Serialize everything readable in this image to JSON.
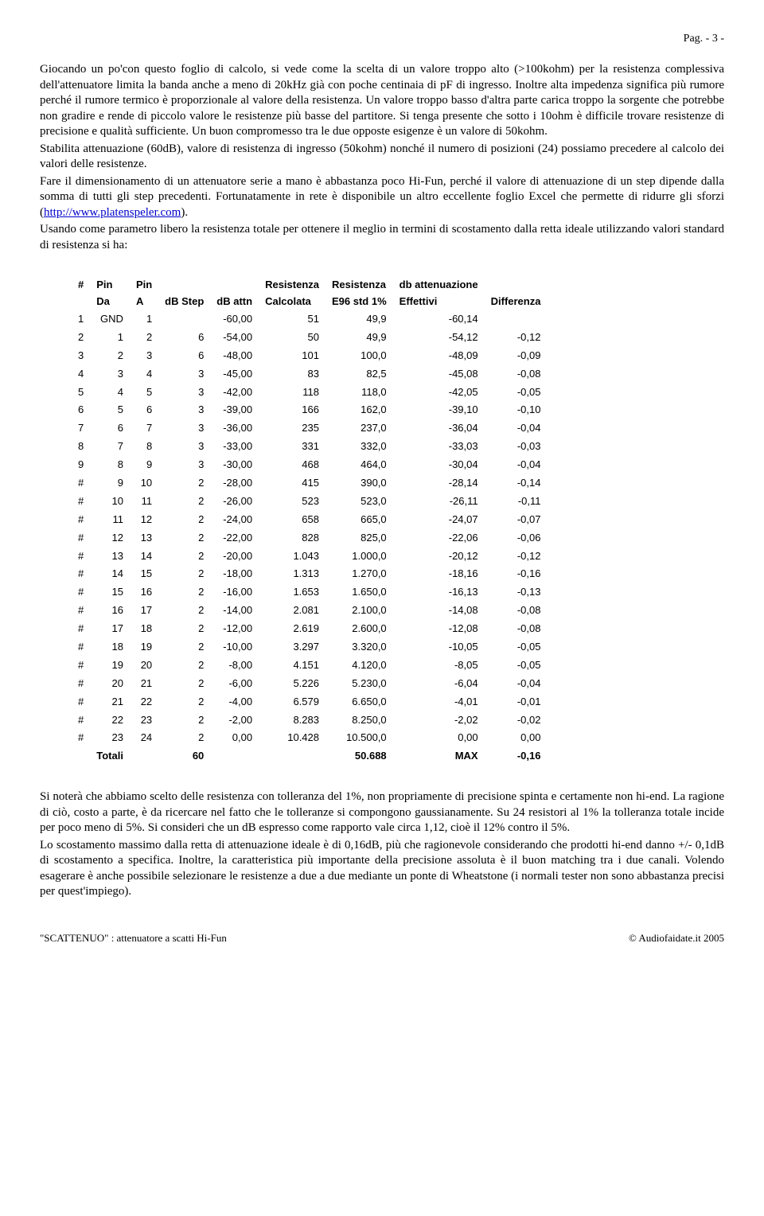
{
  "pageHeader": "Pag. - 3 -",
  "para1": "Giocando un po'con questo foglio di calcolo, si vede come la scelta di un valore troppo alto (>100kohm) per la resistenza complessiva dell'attenuatore limita la banda anche a meno di 20kHz già con poche centinaia di pF di ingresso. Inoltre alta impedenza significa più rumore perché il rumore termico è proporzionale al valore della resistenza. Un valore troppo basso d'altra parte carica troppo la sorgente che potrebbe non gradire e rende di piccolo valore le resistenze più basse del partitore. Si tenga presente che sotto i 10ohm è difficile trovare resistenze di precisione e qualità sufficiente. Un buon compromesso tra le due opposte esigenze è un valore di 50kohm.",
  "para2": "Stabilita attenuazione (60dB), valore di resistenza di ingresso (50kohm) nonché il numero di posizioni (24) possiamo precedere al calcolo dei valori delle resistenze.",
  "para3a": "Fare il dimensionamento di un attenuatore serie a mano è abbastanza poco Hi-Fun, perché il valore di attenuazione di un step dipende dalla somma di tutti gli step precedenti. Fortunatamente in rete è disponibile un altro eccellente foglio Excel che permette di ridurre gli sforzi (",
  "linkText": "http://www.platenspeler.com",
  "para3b": ").",
  "para4": "Usando come parametro libero la resistenza totale per ottenere il meglio in termini di scostamento dalla retta ideale utilizzando valori standard di resistenza si ha:",
  "headers": {
    "h1": "#",
    "h2": "Pin",
    "h3": "Pin",
    "h4": "",
    "h5": "",
    "h6": "Resistenza",
    "h7": "Resistenza",
    "h8": "db attenuazione",
    "h9": "",
    "s2": "Da",
    "s3": "A",
    "s4": "dB Step",
    "s5": "dB attn",
    "s6": "Calcolata",
    "s7": "E96 std 1%",
    "s8": "Effettivi",
    "s9": "Differenza"
  },
  "rows": [
    [
      "1",
      "GND",
      "1",
      "",
      "-60,00",
      "51",
      "49,9",
      "-60,14",
      ""
    ],
    [
      "2",
      "1",
      "2",
      "6",
      "-54,00",
      "50",
      "49,9",
      "-54,12",
      "-0,12"
    ],
    [
      "3",
      "2",
      "3",
      "6",
      "-48,00",
      "101",
      "100,0",
      "-48,09",
      "-0,09"
    ],
    [
      "4",
      "3",
      "4",
      "3",
      "-45,00",
      "83",
      "82,5",
      "-45,08",
      "-0,08"
    ],
    [
      "5",
      "4",
      "5",
      "3",
      "-42,00",
      "118",
      "118,0",
      "-42,05",
      "-0,05"
    ],
    [
      "6",
      "5",
      "6",
      "3",
      "-39,00",
      "166",
      "162,0",
      "-39,10",
      "-0,10"
    ],
    [
      "7",
      "6",
      "7",
      "3",
      "-36,00",
      "235",
      "237,0",
      "-36,04",
      "-0,04"
    ],
    [
      "8",
      "7",
      "8",
      "3",
      "-33,00",
      "331",
      "332,0",
      "-33,03",
      "-0,03"
    ],
    [
      "9",
      "8",
      "9",
      "3",
      "-30,00",
      "468",
      "464,0",
      "-30,04",
      "-0,04"
    ],
    [
      "#",
      "9",
      "10",
      "2",
      "-28,00",
      "415",
      "390,0",
      "-28,14",
      "-0,14"
    ],
    [
      "#",
      "10",
      "11",
      "2",
      "-26,00",
      "523",
      "523,0",
      "-26,11",
      "-0,11"
    ],
    [
      "#",
      "11",
      "12",
      "2",
      "-24,00",
      "658",
      "665,0",
      "-24,07",
      "-0,07"
    ],
    [
      "#",
      "12",
      "13",
      "2",
      "-22,00",
      "828",
      "825,0",
      "-22,06",
      "-0,06"
    ],
    [
      "#",
      "13",
      "14",
      "2",
      "-20,00",
      "1.043",
      "1.000,0",
      "-20,12",
      "-0,12"
    ],
    [
      "#",
      "14",
      "15",
      "2",
      "-18,00",
      "1.313",
      "1.270,0",
      "-18,16",
      "-0,16"
    ],
    [
      "#",
      "15",
      "16",
      "2",
      "-16,00",
      "1.653",
      "1.650,0",
      "-16,13",
      "-0,13"
    ],
    [
      "#",
      "16",
      "17",
      "2",
      "-14,00",
      "2.081",
      "2.100,0",
      "-14,08",
      "-0,08"
    ],
    [
      "#",
      "17",
      "18",
      "2",
      "-12,00",
      "2.619",
      "2.600,0",
      "-12,08",
      "-0,08"
    ],
    [
      "#",
      "18",
      "19",
      "2",
      "-10,00",
      "3.297",
      "3.320,0",
      "-10,05",
      "-0,05"
    ],
    [
      "#",
      "19",
      "20",
      "2",
      "-8,00",
      "4.151",
      "4.120,0",
      "-8,05",
      "-0,05"
    ],
    [
      "#",
      "20",
      "21",
      "2",
      "-6,00",
      "5.226",
      "5.230,0",
      "-6,04",
      "-0,04"
    ],
    [
      "#",
      "21",
      "22",
      "2",
      "-4,00",
      "6.579",
      "6.650,0",
      "-4,01",
      "-0,01"
    ],
    [
      "#",
      "22",
      "23",
      "2",
      "-2,00",
      "8.283",
      "8.250,0",
      "-2,02",
      "-0,02"
    ],
    [
      "#",
      "23",
      "24",
      "2",
      "0,00",
      "10.428",
      "10.500,0",
      "0,00",
      "0,00"
    ]
  ],
  "totals": {
    "label": "Totali",
    "dbstep": "60",
    "e96": "50.688",
    "max": "MAX",
    "diff": "-0,16"
  },
  "para5": "Si noterà che abbiamo scelto delle resistenza con tolleranza del 1%, non propriamente di precisione spinta e certamente non hi-end. La ragione di ciò, costo a parte, è da ricercare nel fatto che le tolleranze si compongono gaussianamente. Su 24 resistori al 1% la tolleranza totale incide per poco meno di 5%. Si consideri che un dB espresso come rapporto vale circa 1,12, cioè il 12% contro il 5%.",
  "para6": "Lo scostamento massimo dalla retta di attenuazione ideale è di 0,16dB, più che ragionevole considerando che prodotti hi-end danno +/- 0,1dB di scostamento a specifica. Inoltre, la caratteristica più importante della precisione assoluta è il buon matching tra i due canali. Volendo esagerare è anche possibile selezionare le resistenze a due a due mediante un ponte di Wheatstone (i normali tester non sono abbastanza precisi per quest'impiego).",
  "footerLeft": "\"SCATTENUO\" : attenuatore a scatti Hi-Fun",
  "footerRight": "© Audiofaidate.it 2005"
}
